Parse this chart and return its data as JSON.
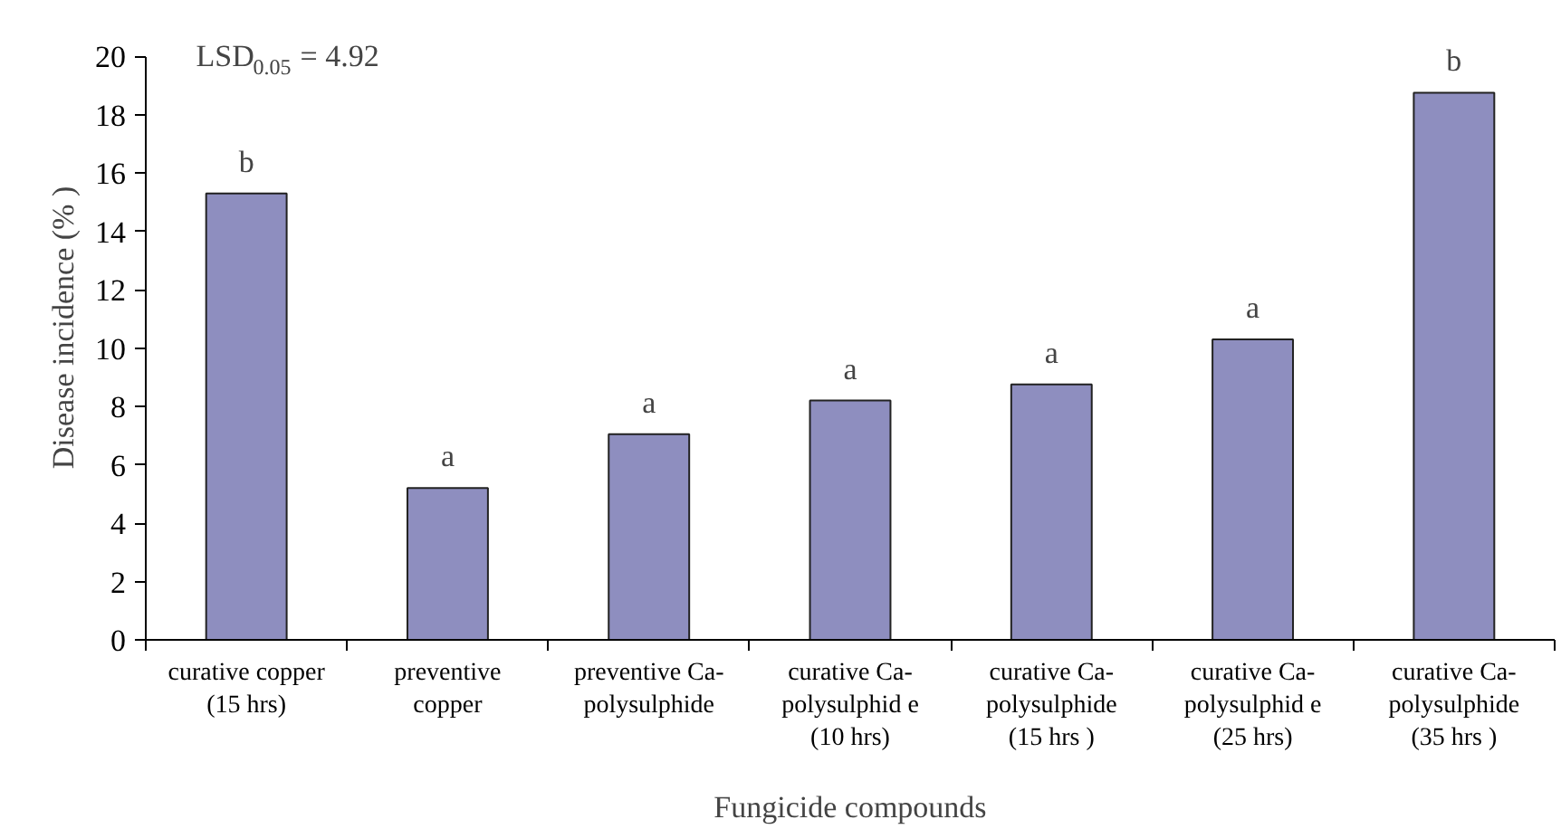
{
  "chart_data": {
    "type": "bar",
    "xlabel": "Fungicide compounds",
    "ylabel": "Disease incidence (% )",
    "categories": [
      "curative copper\n(15 hrs)",
      "preventive\ncopper",
      "preventive Ca-\npolysulphide",
      "curative Ca-\npolysulphid e\n(10 hrs)",
      "curative Ca-\npolysulphide\n(15 hrs )",
      "curative Ca-\npolysulphid e\n(25 hrs)",
      "curative Ca-\npolysulphide\n(35 hrs )"
    ],
    "values": [
      15.3,
      5.2,
      7.05,
      8.2,
      8.75,
      10.3,
      18.75
    ],
    "color": "#8e8ebf",
    "ylim": [
      0,
      20
    ],
    "yticks": [
      0,
      2,
      4,
      6,
      8,
      10,
      12,
      14,
      16,
      18,
      20
    ],
    "grid": false,
    "annotations": [
      "LSD$_{0.05}$ = 4.92",
      {
        "text": "b",
        "x": "curative copper\n(15 hrs)",
        "y": 15.3
      },
      {
        "text": "a",
        "x": "preventive\ncopper",
        "y": 5.2
      },
      {
        "text": "a",
        "x": "preventive Ca-\npolysulphide",
        "y": 7.05
      },
      {
        "text": "a",
        "x": "curative Ca-\npolysulphid e\n(10 hrs)",
        "y": 8.2
      },
      {
        "text": "a",
        "x": "curative Ca-\npolysulphide\n(15 hrs )",
        "y": 8.75
      },
      {
        "text": "a",
        "x": "curative Ca-\npolysulphid e\n(25 hrs)",
        "y": 10.3
      },
      {
        "text": "b",
        "x": "curative Ca-\npolysulphide\n(35 hrs )",
        "y": 18.75
      }
    ]
  }
}
